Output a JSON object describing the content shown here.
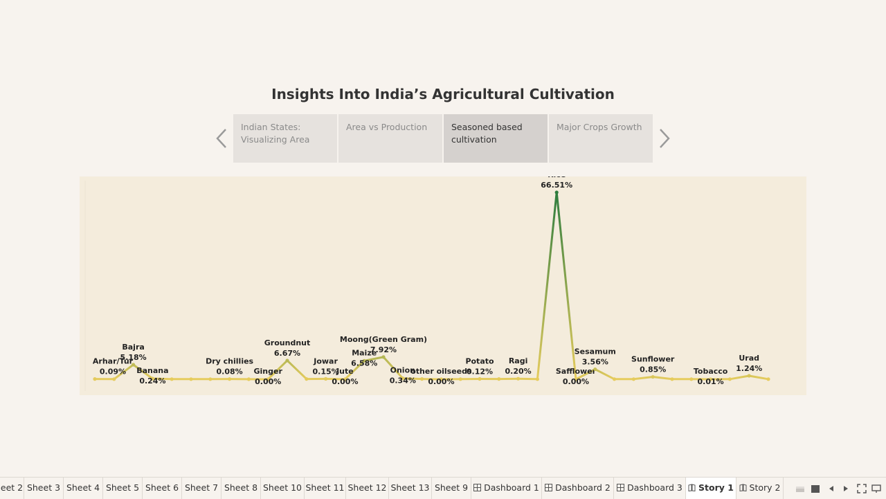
{
  "story": {
    "title": "Insights Into India’s Agricultural Cultivation",
    "points": [
      {
        "label": "Indian States: Visualizing Area",
        "active": false
      },
      {
        "label": "Area vs Production",
        "active": false
      },
      {
        "label": "Seasoned based cultivation",
        "active": true
      },
      {
        "label": "Major Crops Growth",
        "active": false
      }
    ]
  },
  "chart_data": {
    "type": "line",
    "title": "",
    "xlabel": "",
    "ylabel": "",
    "series": [
      {
        "points": [
          {
            "crop": "Arhar/Tur",
            "value": 0.09,
            "pct": "0.09%",
            "label": true
          },
          {
            "crop": "",
            "value": 0.05,
            "pct": "",
            "label": false
          },
          {
            "crop": "Bajra",
            "value": 5.18,
            "pct": "5.18%",
            "label": true
          },
          {
            "crop": "Banana",
            "value": 0.24,
            "pct": "0.24%",
            "label": true
          },
          {
            "crop": "",
            "value": 0.05,
            "pct": "",
            "label": false
          },
          {
            "crop": "",
            "value": 0.05,
            "pct": "",
            "label": false
          },
          {
            "crop": "",
            "value": 0.05,
            "pct": "",
            "label": false
          },
          {
            "crop": "Dry chillies",
            "value": 0.08,
            "pct": "0.08%",
            "label": true
          },
          {
            "crop": "",
            "value": 0.03,
            "pct": "",
            "label": false
          },
          {
            "crop": "Ginger",
            "value": 0.0,
            "pct": "0.00%",
            "label": true
          },
          {
            "crop": "Groundnut",
            "value": 6.67,
            "pct": "6.67%",
            "label": true
          },
          {
            "crop": "",
            "value": 0.1,
            "pct": "",
            "label": false
          },
          {
            "crop": "Jowar",
            "value": 0.15,
            "pct": "0.15%",
            "label": true
          },
          {
            "crop": "Jute",
            "value": 0.0,
            "pct": "0.00%",
            "label": true
          },
          {
            "crop": "Maize",
            "value": 6.58,
            "pct": "6.58%",
            "label": true
          },
          {
            "crop": "Moong(Green Gram)",
            "value": 7.92,
            "pct": "7.92%",
            "label": true
          },
          {
            "crop": "Onion",
            "value": 0.34,
            "pct": "0.34%",
            "label": true
          },
          {
            "crop": "",
            "value": 0.1,
            "pct": "",
            "label": false
          },
          {
            "crop": "other oilseeds",
            "value": 0.0,
            "pct": "0.00%",
            "label": true
          },
          {
            "crop": "",
            "value": 0.05,
            "pct": "",
            "label": false
          },
          {
            "crop": "Potato",
            "value": 0.12,
            "pct": "0.12%",
            "label": true
          },
          {
            "crop": "",
            "value": 0.1,
            "pct": "",
            "label": false
          },
          {
            "crop": "Ragi",
            "value": 0.2,
            "pct": "0.20%",
            "label": true
          },
          {
            "crop": "",
            "value": 0.05,
            "pct": "",
            "label": false
          },
          {
            "crop": "Rice",
            "value": 66.51,
            "pct": "66.51%",
            "label": true
          },
          {
            "crop": "Safflower",
            "value": 0.0,
            "pct": "0.00%",
            "label": true
          },
          {
            "crop": "Sesamum",
            "value": 3.56,
            "pct": "3.56%",
            "label": true
          },
          {
            "crop": "",
            "value": 0.05,
            "pct": "",
            "label": false
          },
          {
            "crop": "",
            "value": 0.05,
            "pct": "",
            "label": false
          },
          {
            "crop": "Sunflower",
            "value": 0.85,
            "pct": "0.85%",
            "label": true
          },
          {
            "crop": "",
            "value": 0.05,
            "pct": "",
            "label": false
          },
          {
            "crop": "",
            "value": 0.05,
            "pct": "",
            "label": false
          },
          {
            "crop": "Tobacco",
            "value": 0.01,
            "pct": "0.01%",
            "label": true
          },
          {
            "crop": "",
            "value": 0.05,
            "pct": "",
            "label": false
          },
          {
            "crop": "Urad",
            "value": 1.24,
            "pct": "1.24%",
            "label": true
          },
          {
            "crop": "",
            "value": 0.05,
            "pct": "",
            "label": false
          }
        ]
      }
    ],
    "colors": {
      "low": "#e8cd5e",
      "high": "#2e7d3e"
    },
    "grid": false,
    "legend": "none"
  },
  "tabs": [
    {
      "label": "eet 2",
      "type": "sheet",
      "active": false
    },
    {
      "label": "Sheet 3",
      "type": "sheet",
      "active": false
    },
    {
      "label": "Sheet 4",
      "type": "sheet",
      "active": false
    },
    {
      "label": "Sheet 5",
      "type": "sheet",
      "active": false
    },
    {
      "label": "Sheet 6",
      "type": "sheet",
      "active": false
    },
    {
      "label": "Sheet 7",
      "type": "sheet",
      "active": false
    },
    {
      "label": "Sheet 8",
      "type": "sheet",
      "active": false
    },
    {
      "label": "Sheet 10",
      "type": "sheet",
      "active": false
    },
    {
      "label": "Sheet 11",
      "type": "sheet",
      "active": false
    },
    {
      "label": "Sheet 12",
      "type": "sheet",
      "active": false
    },
    {
      "label": "Sheet 13",
      "type": "sheet",
      "active": false
    },
    {
      "label": "Sheet 9",
      "type": "sheet",
      "active": false
    },
    {
      "label": "Dashboard 1",
      "type": "dashboard",
      "active": false
    },
    {
      "label": "Dashboard 2",
      "type": "dashboard",
      "active": false
    },
    {
      "label": "Dashboard 3",
      "type": "dashboard",
      "active": false
    },
    {
      "label": "Story 1",
      "type": "story",
      "active": true
    },
    {
      "label": "Story 2",
      "type": "story",
      "active": false
    }
  ],
  "controls": [
    "sheet-sorter-icon",
    "filmstrip-icon",
    "prev-sheet-icon",
    "next-sheet-icon",
    "fullscreen-icon",
    "presentation-icon"
  ]
}
